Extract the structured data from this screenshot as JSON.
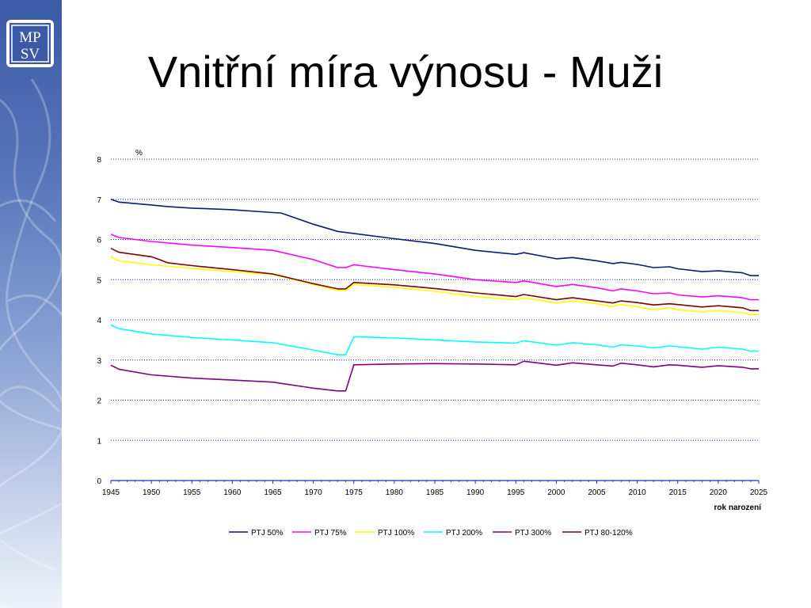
{
  "slide": {
    "title": "Vnitřní míra výnosu - Muži",
    "logo_text": "MPSV"
  },
  "colors": {
    "sidebar": "#5877bb",
    "grid": "#1f2fd0"
  },
  "chart_data": {
    "type": "line",
    "title": "",
    "ylabel": "%",
    "xlabel": "rok narození",
    "ylim": [
      0,
      8
    ],
    "yticks": [
      "0",
      "1",
      "2",
      "3",
      "4",
      "5",
      "6",
      "7",
      "8"
    ],
    "xlim": [
      1945,
      2025
    ],
    "xticks": [
      "1945",
      "1950",
      "1955",
      "1960",
      "1965",
      "1970",
      "1975",
      "1980",
      "1985",
      "1990",
      "1995",
      "2000",
      "2005",
      "2010",
      "2015",
      "2020",
      "2025"
    ],
    "grid": true,
    "legend_position": "bottom",
    "series": [
      {
        "name": "PTJ 50%",
        "color": "#0d1a7a",
        "points": [
          [
            1945,
            7.0
          ],
          [
            1946,
            6.93
          ],
          [
            1950,
            6.86
          ],
          [
            1952,
            6.82
          ],
          [
            1955,
            6.78
          ],
          [
            1960,
            6.74
          ],
          [
            1965,
            6.67
          ],
          [
            1966,
            6.66
          ],
          [
            1970,
            6.38
          ],
          [
            1973,
            6.2
          ],
          [
            1975,
            6.15
          ],
          [
            1980,
            6.02
          ],
          [
            1985,
            5.9
          ],
          [
            1990,
            5.73
          ],
          [
            1995,
            5.63
          ],
          [
            1996,
            5.67
          ],
          [
            2000,
            5.52
          ],
          [
            2002,
            5.55
          ],
          [
            2005,
            5.47
          ],
          [
            2007,
            5.4
          ],
          [
            2008,
            5.43
          ],
          [
            2010,
            5.38
          ],
          [
            2012,
            5.3
          ],
          [
            2014,
            5.32
          ],
          [
            2015,
            5.27
          ],
          [
            2018,
            5.2
          ],
          [
            2020,
            5.22
          ],
          [
            2023,
            5.17
          ],
          [
            2024,
            5.1
          ],
          [
            2025,
            5.1
          ]
        ]
      },
      {
        "name": "PTJ 75%",
        "color": "#ff00ff",
        "points": [
          [
            1945,
            6.13
          ],
          [
            1946,
            6.05
          ],
          [
            1950,
            5.95
          ],
          [
            1955,
            5.86
          ],
          [
            1960,
            5.8
          ],
          [
            1965,
            5.73
          ],
          [
            1970,
            5.5
          ],
          [
            1973,
            5.3
          ],
          [
            1974,
            5.3
          ],
          [
            1975,
            5.37
          ],
          [
            1980,
            5.25
          ],
          [
            1985,
            5.14
          ],
          [
            1990,
            5.0
          ],
          [
            1995,
            4.93
          ],
          [
            1996,
            4.97
          ],
          [
            2000,
            4.83
          ],
          [
            2002,
            4.88
          ],
          [
            2005,
            4.8
          ],
          [
            2007,
            4.72
          ],
          [
            2008,
            4.77
          ],
          [
            2010,
            4.72
          ],
          [
            2012,
            4.65
          ],
          [
            2014,
            4.67
          ],
          [
            2015,
            4.62
          ],
          [
            2018,
            4.57
          ],
          [
            2020,
            4.6
          ],
          [
            2023,
            4.55
          ],
          [
            2024,
            4.5
          ],
          [
            2025,
            4.5
          ]
        ]
      },
      {
        "name": "PTJ 100%",
        "color": "#ffff00",
        "points": [
          [
            1945,
            5.57
          ],
          [
            1946,
            5.47
          ],
          [
            1950,
            5.37
          ],
          [
            1955,
            5.28
          ],
          [
            1960,
            5.2
          ],
          [
            1965,
            5.13
          ],
          [
            1970,
            4.88
          ],
          [
            1973,
            4.73
          ],
          [
            1974,
            4.73
          ],
          [
            1975,
            4.88
          ],
          [
            1980,
            4.81
          ],
          [
            1985,
            4.71
          ],
          [
            1990,
            4.58
          ],
          [
            1995,
            4.5
          ],
          [
            1996,
            4.55
          ],
          [
            2000,
            4.42
          ],
          [
            2002,
            4.47
          ],
          [
            2005,
            4.4
          ],
          [
            2007,
            4.33
          ],
          [
            2008,
            4.38
          ],
          [
            2010,
            4.33
          ],
          [
            2012,
            4.25
          ],
          [
            2014,
            4.3
          ],
          [
            2015,
            4.25
          ],
          [
            2018,
            4.2
          ],
          [
            2020,
            4.23
          ],
          [
            2023,
            4.18
          ],
          [
            2024,
            4.13
          ],
          [
            2025,
            4.13
          ]
        ]
      },
      {
        "name": "PTJ 200%",
        "color": "#00ffff",
        "points": [
          [
            1945,
            3.87
          ],
          [
            1946,
            3.78
          ],
          [
            1950,
            3.65
          ],
          [
            1955,
            3.56
          ],
          [
            1960,
            3.5
          ],
          [
            1965,
            3.43
          ],
          [
            1970,
            3.25
          ],
          [
            1973,
            3.13
          ],
          [
            1974,
            3.13
          ],
          [
            1975,
            3.58
          ],
          [
            1980,
            3.55
          ],
          [
            1985,
            3.5
          ],
          [
            1990,
            3.45
          ],
          [
            1995,
            3.42
          ],
          [
            1996,
            3.48
          ],
          [
            2000,
            3.37
          ],
          [
            2002,
            3.43
          ],
          [
            2005,
            3.38
          ],
          [
            2007,
            3.32
          ],
          [
            2008,
            3.38
          ],
          [
            2010,
            3.35
          ],
          [
            2012,
            3.3
          ],
          [
            2014,
            3.35
          ],
          [
            2015,
            3.33
          ],
          [
            2018,
            3.27
          ],
          [
            2020,
            3.32
          ],
          [
            2023,
            3.27
          ],
          [
            2024,
            3.22
          ],
          [
            2025,
            3.22
          ]
        ]
      },
      {
        "name": "PTJ 300%",
        "color": "#800080",
        "points": [
          [
            1945,
            2.87
          ],
          [
            1946,
            2.77
          ],
          [
            1950,
            2.63
          ],
          [
            1955,
            2.55
          ],
          [
            1960,
            2.5
          ],
          [
            1965,
            2.45
          ],
          [
            1970,
            2.3
          ],
          [
            1973,
            2.23
          ],
          [
            1974,
            2.23
          ],
          [
            1975,
            2.88
          ],
          [
            1980,
            2.9
          ],
          [
            1985,
            2.91
          ],
          [
            1990,
            2.9
          ],
          [
            1995,
            2.88
          ],
          [
            1996,
            2.97
          ],
          [
            2000,
            2.87
          ],
          [
            2002,
            2.93
          ],
          [
            2005,
            2.88
          ],
          [
            2007,
            2.85
          ],
          [
            2008,
            2.92
          ],
          [
            2010,
            2.88
          ],
          [
            2012,
            2.83
          ],
          [
            2014,
            2.88
          ],
          [
            2015,
            2.87
          ],
          [
            2018,
            2.82
          ],
          [
            2020,
            2.86
          ],
          [
            2023,
            2.82
          ],
          [
            2024,
            2.78
          ],
          [
            2025,
            2.78
          ]
        ]
      },
      {
        "name": "PTJ 80-120%",
        "color": "#800000",
        "points": [
          [
            1945,
            5.78
          ],
          [
            1946,
            5.68
          ],
          [
            1950,
            5.57
          ],
          [
            1951,
            5.5
          ],
          [
            1952,
            5.42
          ],
          [
            1955,
            5.35
          ],
          [
            1960,
            5.25
          ],
          [
            1965,
            5.14
          ],
          [
            1970,
            4.9
          ],
          [
            1973,
            4.77
          ],
          [
            1974,
            4.77
          ],
          [
            1975,
            4.93
          ],
          [
            1980,
            4.87
          ],
          [
            1985,
            4.78
          ],
          [
            1990,
            4.67
          ],
          [
            1995,
            4.58
          ],
          [
            1996,
            4.63
          ],
          [
            2000,
            4.5
          ],
          [
            2002,
            4.55
          ],
          [
            2005,
            4.47
          ],
          [
            2007,
            4.42
          ],
          [
            2008,
            4.47
          ],
          [
            2010,
            4.43
          ],
          [
            2012,
            4.37
          ],
          [
            2014,
            4.4
          ],
          [
            2015,
            4.38
          ],
          [
            2018,
            4.32
          ],
          [
            2020,
            4.35
          ],
          [
            2023,
            4.3
          ],
          [
            2024,
            4.23
          ],
          [
            2025,
            4.23
          ]
        ]
      }
    ]
  }
}
